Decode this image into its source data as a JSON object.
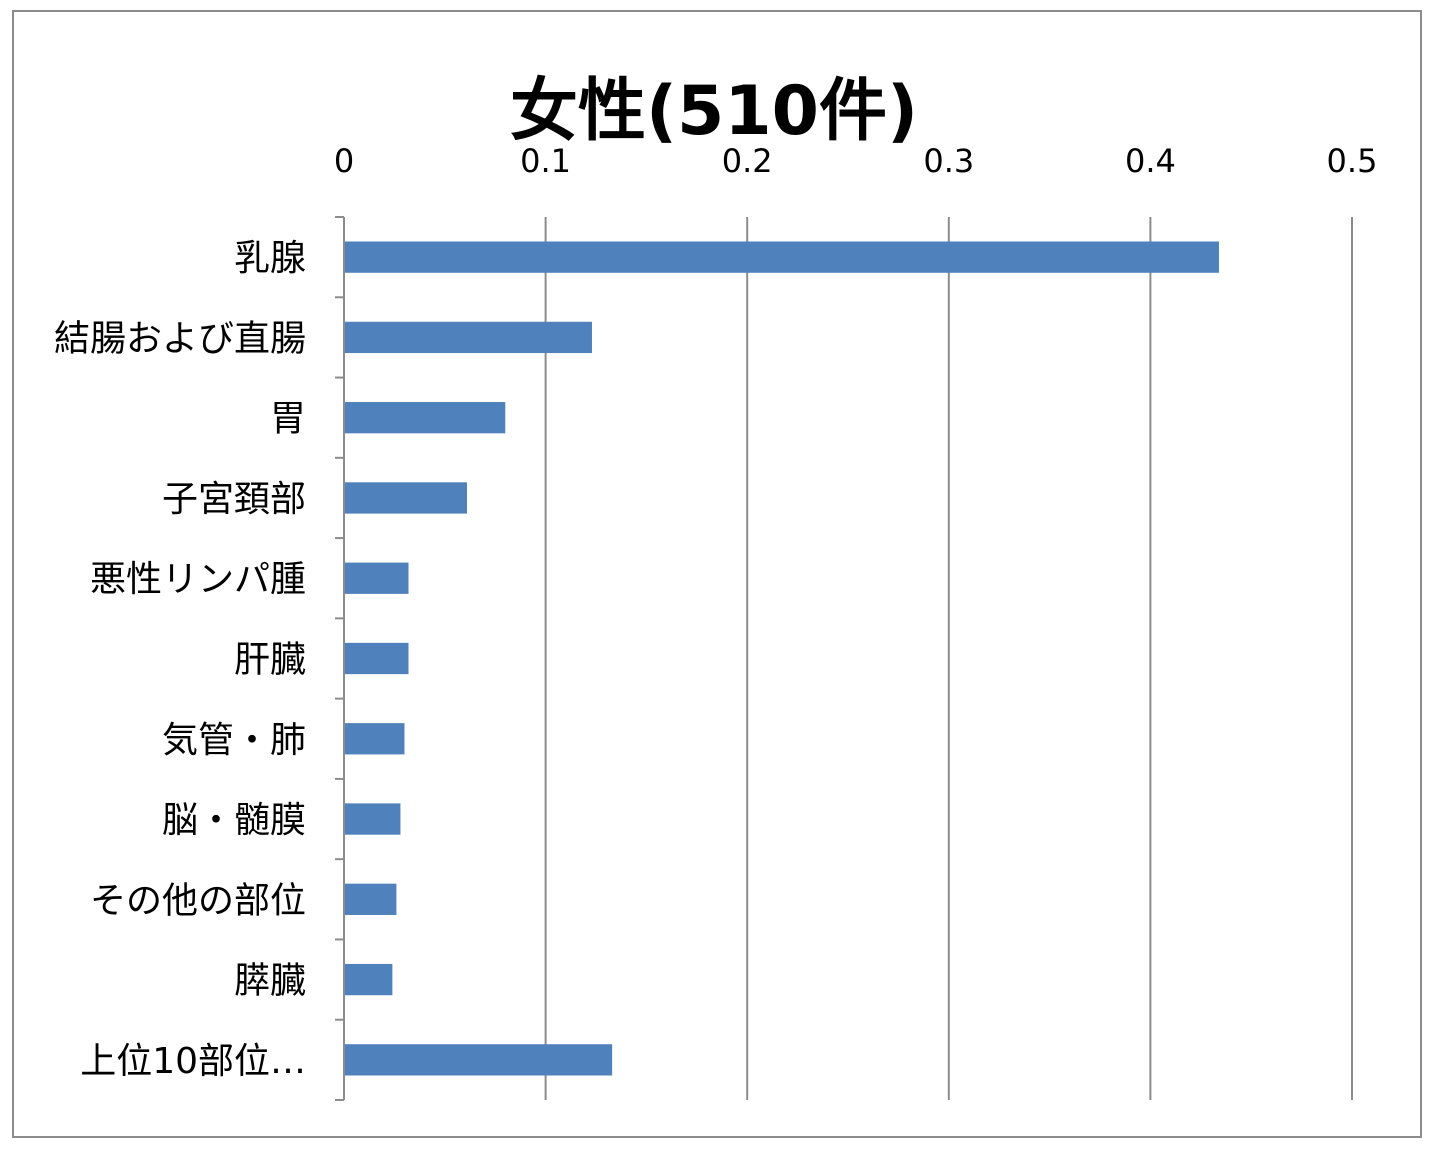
{
  "chart_data": {
    "type": "bar",
    "orientation": "horizontal",
    "title": "女性(510件)",
    "xlabel": "",
    "ylabel": "",
    "xlim": [
      0,
      0.5
    ],
    "x_ticks": [
      "0",
      "0.1",
      "0.2",
      "0.3",
      "0.4",
      "0.5"
    ],
    "x_tick_values": [
      0,
      0.1,
      0.2,
      0.3,
      0.4,
      0.5
    ],
    "x_axis_position": "top",
    "grid": true,
    "legend": "none",
    "categories": [
      "乳腺",
      "結腸および直腸",
      "胃",
      "子宮頚部",
      "悪性リンパ腫",
      "肝臓",
      "気管・肺",
      "脳・髄膜",
      "その他の部位",
      "膵臓",
      "上位10部位…"
    ],
    "values": [
      0.434,
      0.123,
      0.08,
      0.061,
      0.032,
      0.032,
      0.03,
      0.028,
      0.026,
      0.024,
      0.133
    ],
    "bar_color": "#4f81bd",
    "gridline_color": "#8c8c8c"
  }
}
